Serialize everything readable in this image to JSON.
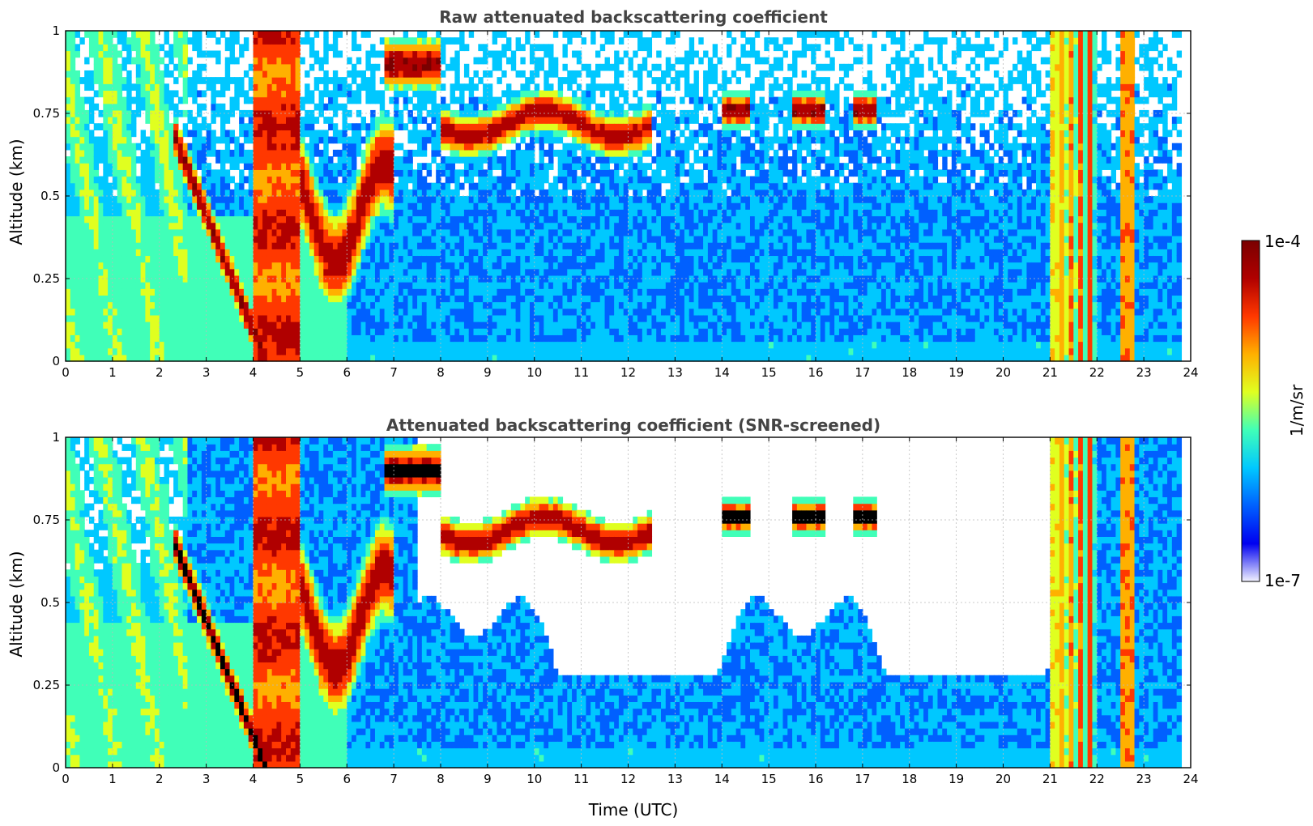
{
  "colors": {
    "background": "#ffffff",
    "title_text": "#444444",
    "grid": "#bbbbbb",
    "jet_map": [
      "#ffffff",
      "#0000f0",
      "#0060ff",
      "#00c8ff",
      "#40ffb8",
      "#e0ff20",
      "#ffb000",
      "#ff3800",
      "#b00000",
      "#7a0000"
    ],
    "over_range": "#000000"
  },
  "chart_data": [
    {
      "type": "heatmap",
      "title": "Raw attenuated backscattering coefficient",
      "xlabel": "",
      "ylabel": "Altitude (km)",
      "xlim": [
        0,
        24
      ],
      "ylim": [
        0,
        1
      ],
      "xticks": [
        "0",
        "1",
        "2",
        "3",
        "4",
        "5",
        "6",
        "7",
        "8",
        "9",
        "10",
        "11",
        "12",
        "13",
        "14",
        "15",
        "16",
        "17",
        "18",
        "19",
        "20",
        "21",
        "22",
        "23",
        "24"
      ],
      "yticks": [
        "0",
        "0.25",
        "0.5",
        "0.75",
        "1"
      ],
      "grid": true,
      "snr_screened": false
    },
    {
      "type": "heatmap",
      "title": "Attenuated backscattering coefficient (SNR-screened)",
      "xlabel": "Time (UTC)",
      "ylabel": "Altitude (km)",
      "xlim": [
        0,
        24
      ],
      "ylim": [
        0,
        1
      ],
      "xticks": [
        "0",
        "1",
        "2",
        "3",
        "4",
        "5",
        "6",
        "7",
        "8",
        "9",
        "10",
        "11",
        "12",
        "13",
        "14",
        "15",
        "16",
        "17",
        "18",
        "19",
        "20",
        "21",
        "22",
        "23",
        "24"
      ],
      "yticks": [
        "0",
        "0.25",
        "0.5",
        "0.75",
        "1"
      ],
      "grid": true,
      "snr_screened": true
    }
  ],
  "colorbar": {
    "label": "1/m/sr",
    "scale": "log",
    "max_label": "1e-4",
    "min_label": "1e-7",
    "range": [
      1e-07,
      0.0001
    ]
  }
}
